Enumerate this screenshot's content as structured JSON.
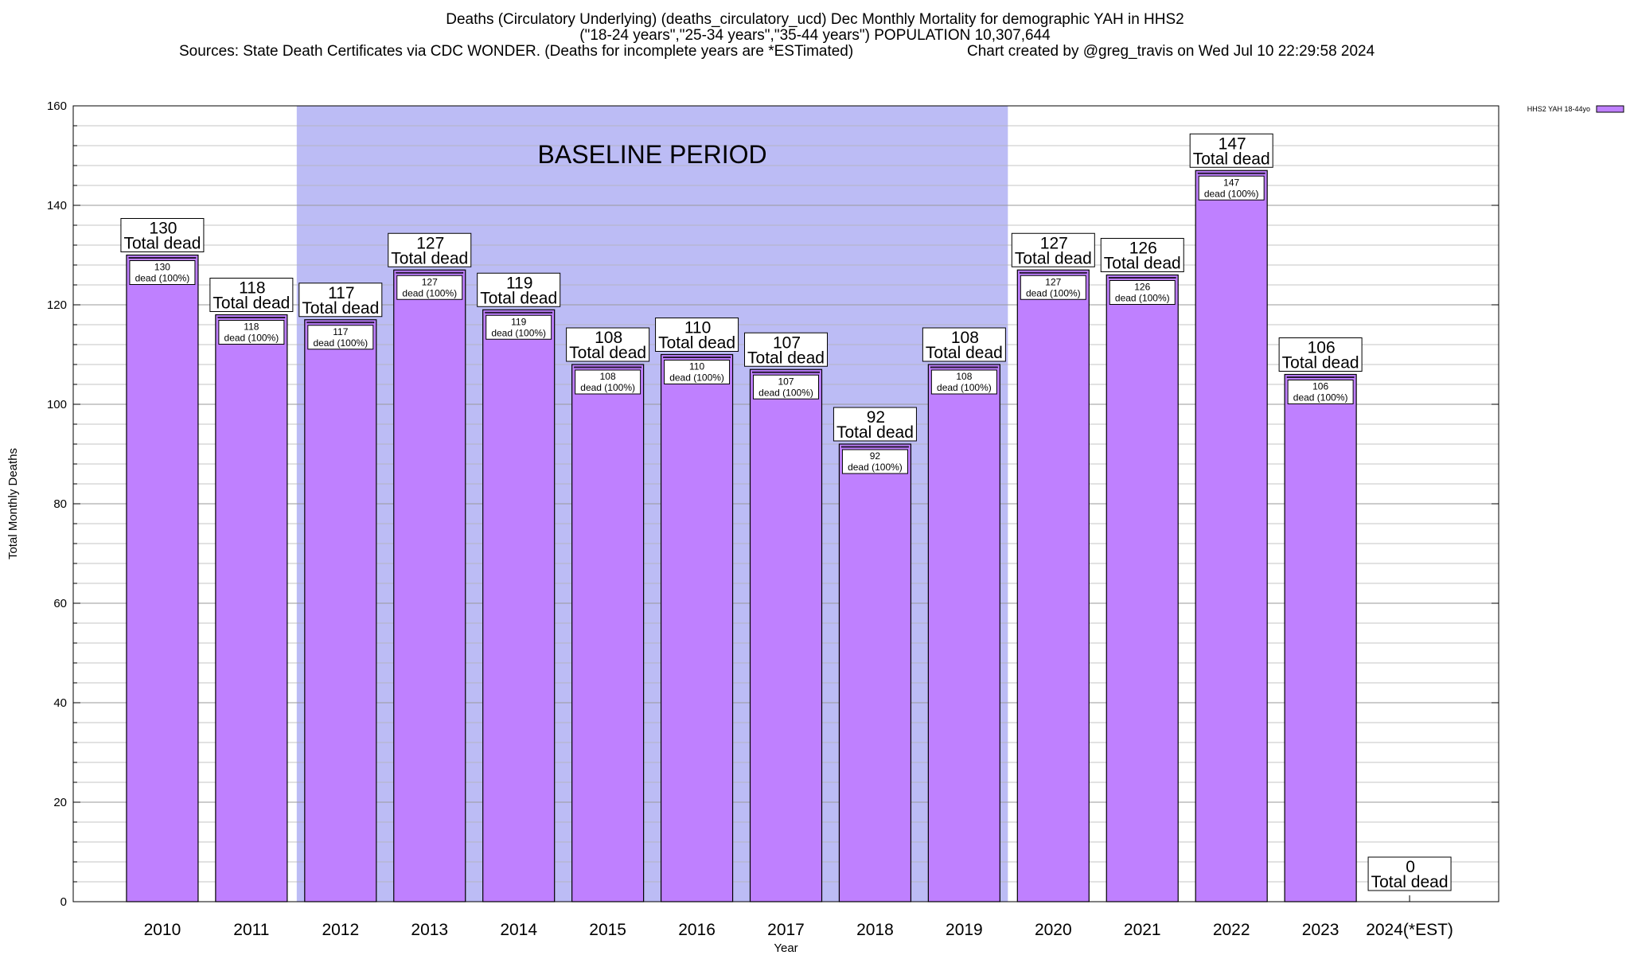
{
  "header": {
    "line1": "Deaths (Circulatory Underlying) (deaths_circulatory_ucd) Dec Monthly Mortality for demographic YAH in HHS2",
    "line2": "(\"18-24 years\",\"25-34 years\",\"35-44 years\") POPULATION 10,307,644",
    "line3_left": "Sources: State Death Certificates via CDC WONDER. (Deaths for incomplete years are *ESTimated)",
    "line3_right": "Chart created by @greg_travis on Wed Jul 10 22:29:58 2024"
  },
  "chart_data": {
    "type": "bar",
    "categories": [
      "2010",
      "2011",
      "2012",
      "2013",
      "2014",
      "2015",
      "2016",
      "2017",
      "2018",
      "2019",
      "2020",
      "2021",
      "2022",
      "2023",
      "2024(*EST)"
    ],
    "series": [
      {
        "name": "HHS2 YAH 18-44yo",
        "values": [
          130,
          118,
          117,
          127,
          119,
          108,
          110,
          107,
          92,
          108,
          127,
          126,
          147,
          106,
          0
        ],
        "color": "#bf80ff"
      }
    ],
    "xlabel": "Year",
    "ylabel": "Total Monthly Deaths",
    "ylim": [
      0,
      160
    ],
    "yticks": [
      "0",
      "20",
      "40",
      "60",
      "80",
      "100",
      "120",
      "140",
      "160"
    ],
    "grid": true,
    "legend_position": "top-right",
    "total_label_suffix": "Total dead",
    "inner_label_suffix": "dead (100%)",
    "baseline_period": {
      "label": "BASELINE PERIOD",
      "start_category": "2012",
      "end_category": "2019",
      "color": "#bcbcf5"
    }
  }
}
